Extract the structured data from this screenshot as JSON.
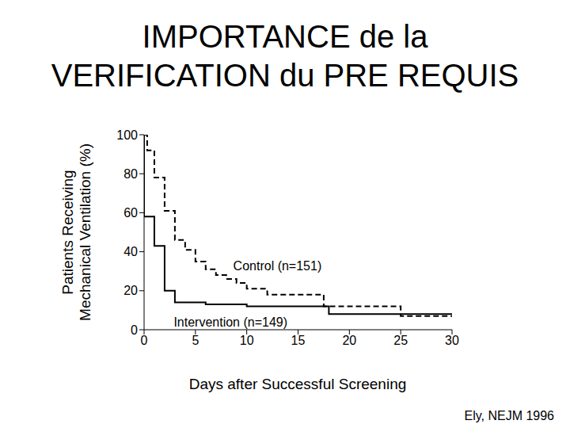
{
  "chart_data": {
    "type": "line",
    "title": [
      "IMPORTANCE de la",
      "VERIFICATION du PRE REQUIS"
    ],
    "xlabel": "Days after Successful Screening",
    "ylabel": [
      "Patients Receiving",
      "Mechanical Ventilation (%)"
    ],
    "source": "Ely, NEJM 1996",
    "xlim": [
      0,
      30
    ],
    "xticks": [
      0,
      5,
      10,
      15,
      20,
      25,
      30
    ],
    "ylim": [
      0,
      100
    ],
    "yticks": [
      0,
      20,
      40,
      60,
      80,
      100
    ],
    "grid": false,
    "series": [
      {
        "name": "Control (n=151)",
        "color": "#000000",
        "line_style": "dashed",
        "x": [
          0,
          0.3,
          1,
          2,
          3,
          4,
          5,
          6,
          7,
          8,
          9,
          10,
          12,
          17.5,
          25,
          30
        ],
        "values": [
          100,
          92,
          78,
          61,
          46,
          41,
          35,
          31,
          28,
          26,
          24,
          21,
          18,
          12,
          7,
          7
        ]
      },
      {
        "name": "Intervention (n=149)",
        "color": "#000000",
        "line_style": "solid",
        "x": [
          0,
          0,
          1,
          2,
          3,
          6,
          10,
          18,
          30
        ],
        "values": [
          100,
          58,
          43,
          20,
          14,
          13,
          12,
          8,
          8
        ]
      }
    ]
  }
}
